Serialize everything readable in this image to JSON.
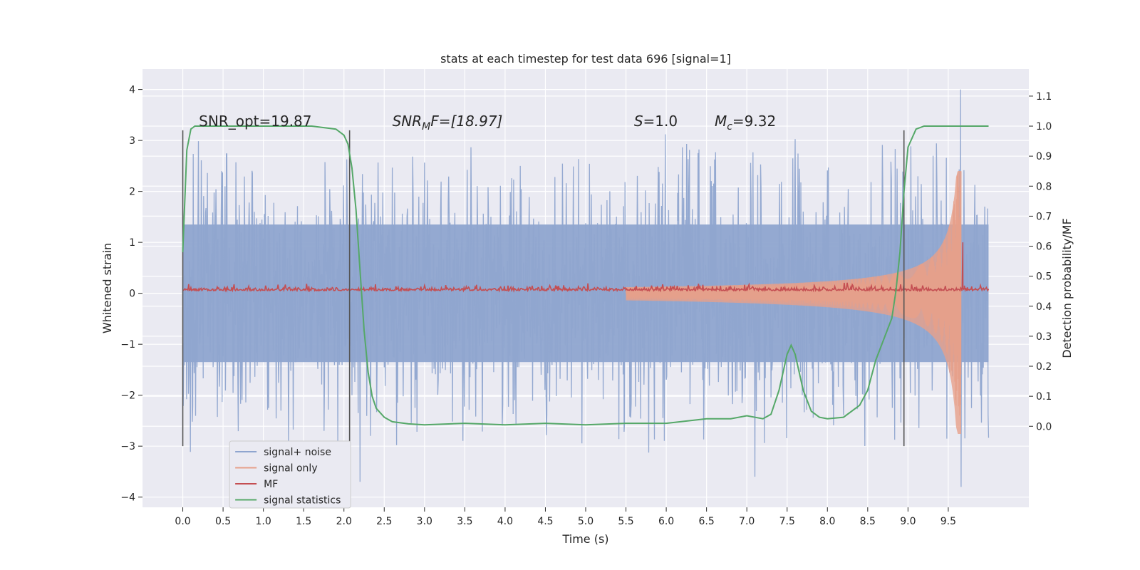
{
  "chart_data": {
    "type": "line",
    "title": "stats at each timestep for test data 696 [signal=1]",
    "xlabel": "Time (s)",
    "ylabel": "Whitened strain",
    "y2label": "Detection probability/MF",
    "xlim": [
      -0.5,
      10.5
    ],
    "ylim": [
      -4.2,
      4.4
    ],
    "y2lim": [
      -0.27,
      1.19
    ],
    "x_ticks": [
      0.0,
      0.5,
      1.0,
      1.5,
      2.0,
      2.5,
      3.0,
      3.5,
      4.0,
      4.5,
      5.0,
      5.5,
      6.0,
      6.5,
      7.0,
      7.5,
      8.0,
      8.5,
      9.0,
      9.5
    ],
    "x_tick_labels": [
      "0.0",
      "0.5",
      "1.0",
      "1.5",
      "2.0",
      "2.5",
      "3.0",
      "3.5",
      "4.0",
      "4.5",
      "5.0",
      "5.5",
      "6.0",
      "6.5",
      "7.0",
      "7.5",
      "8.0",
      "8.5",
      "9.0",
      "9.5"
    ],
    "y_ticks": [
      -4,
      -3,
      -2,
      -1,
      0,
      1,
      2,
      3,
      4
    ],
    "y_tick_labels": [
      "−4",
      "−3",
      "−2",
      "−1",
      "0",
      "1",
      "2",
      "3",
      "4"
    ],
    "y2_ticks": [
      0.0,
      0.1,
      0.2,
      0.3,
      0.4,
      0.5,
      0.6,
      0.7,
      0.8,
      0.9,
      1.0,
      1.1
    ],
    "y2_tick_labels": [
      "0.0",
      "0.1",
      "0.2",
      "0.3",
      "0.4",
      "0.5",
      "0.6",
      "0.7",
      "0.8",
      "0.9",
      "1.0",
      "1.1"
    ],
    "grid": true,
    "legend_position": "lower-left",
    "colors": {
      "background": "#eaeaf2",
      "grid": "#ffffff",
      "signal_noise": "#8fa5cf",
      "signal_only": "#e7a08a",
      "mf": "#c44e52",
      "statistics": "#55a868",
      "vline": "#555555"
    },
    "annotations": {
      "snr_opt": "SNR_opt=19.87",
      "snr_mf_prefix": "SNR",
      "snr_mf_sub": "M",
      "snr_mf_suffix": "F=[18.97]",
      "s_sym": "S",
      "s_val": "=1.0",
      "mc_sym": "M",
      "mc_sub": "c",
      "mc_val": "=9.32"
    },
    "vlines_x": [
      0.0,
      2.07,
      8.95
    ],
    "vlines_range": [
      -3.0,
      3.2
    ],
    "series": [
      {
        "name": "signal+ noise",
        "key": "noise",
        "x_range": [
          0.0,
          10.0
        ],
        "envelope_inner": 1.35,
        "envelope_outer": 2.9,
        "peaks": [
          [
            9.65,
            4.0
          ],
          [
            9.66,
            -3.8
          ],
          [
            2.2,
            -3.7
          ],
          [
            7.1,
            -3.6
          ]
        ]
      },
      {
        "name": "signal only",
        "key": "chirp",
        "x_range": [
          5.5,
          9.66
        ],
        "peak_amplitude": 2.4,
        "merger_time": 9.66
      },
      {
        "name": "MF",
        "key": "mf",
        "x_range": [
          0.0,
          10.0
        ],
        "baseline": 0.05,
        "spike": [
          9.68,
          1.0
        ]
      },
      {
        "name": "signal statistics",
        "key": "stats",
        "x": [
          0.0,
          0.05,
          0.1,
          0.15,
          0.2,
          0.4,
          0.8,
          1.2,
          1.6,
          1.9,
          2.0,
          2.05,
          2.1,
          2.15,
          2.2,
          2.25,
          2.3,
          2.35,
          2.4,
          2.5,
          2.6,
          2.8,
          3.0,
          3.5,
          4.0,
          4.5,
          5.0,
          5.5,
          6.0,
          6.5,
          6.8,
          7.0,
          7.2,
          7.3,
          7.4,
          7.5,
          7.55,
          7.6,
          7.7,
          7.8,
          7.9,
          8.0,
          8.2,
          8.4,
          8.5,
          8.6,
          8.7,
          8.8,
          8.85,
          8.9,
          8.95,
          9.0,
          9.1,
          9.2,
          9.5,
          9.7,
          9.9,
          10.0
        ],
        "y": [
          0.58,
          0.92,
          0.99,
          1.0,
          1.0,
          1.0,
          1.0,
          1.0,
          1.0,
          0.99,
          0.97,
          0.94,
          0.86,
          0.72,
          0.52,
          0.32,
          0.18,
          0.1,
          0.06,
          0.03,
          0.015,
          0.008,
          0.005,
          0.01,
          0.005,
          0.01,
          0.005,
          0.01,
          0.01,
          0.025,
          0.025,
          0.035,
          0.025,
          0.04,
          0.12,
          0.24,
          0.27,
          0.24,
          0.12,
          0.05,
          0.03,
          0.025,
          0.03,
          0.07,
          0.12,
          0.22,
          0.29,
          0.36,
          0.45,
          0.58,
          0.78,
          0.93,
          0.99,
          1.0,
          1.0,
          1.0,
          1.0,
          1.0
        ]
      }
    ]
  }
}
